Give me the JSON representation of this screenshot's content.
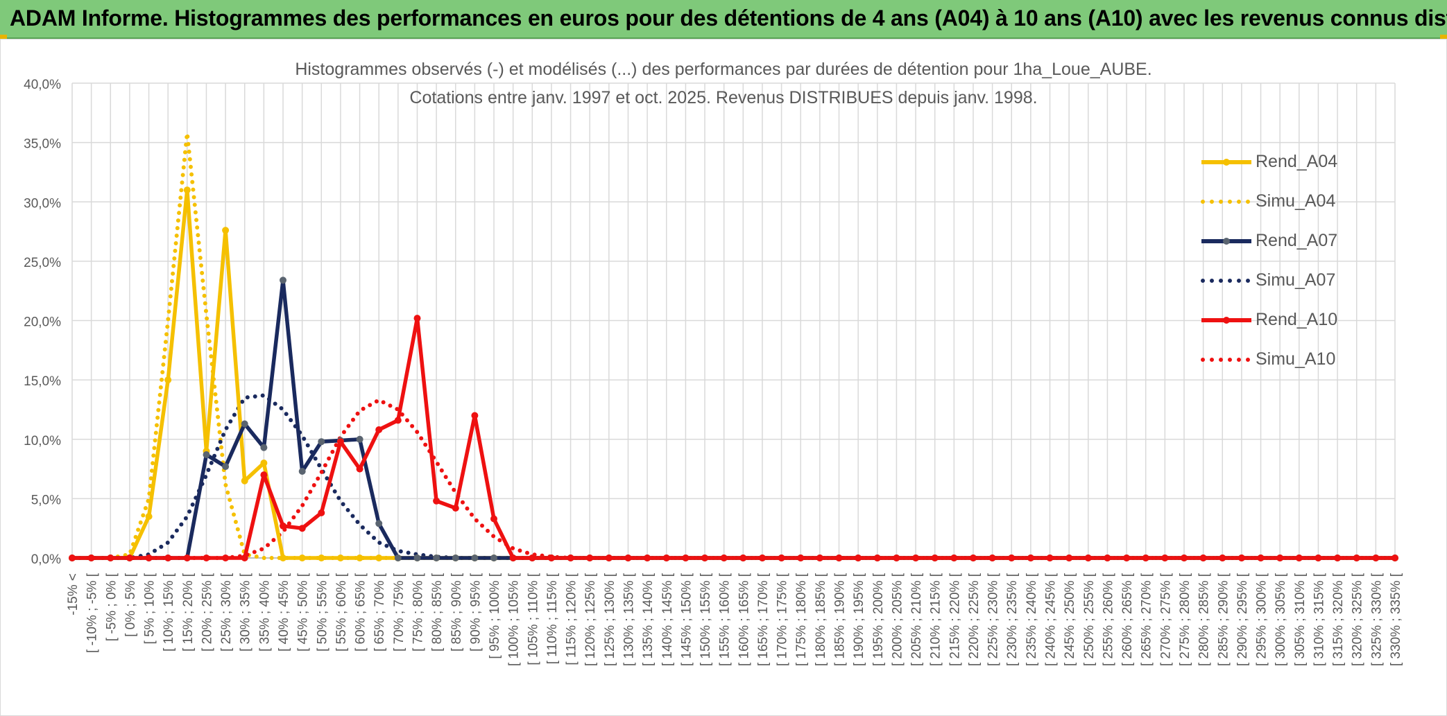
{
  "banner": {
    "title": "ADAM Informe. Histogrammes des performances en euros pour des détentions de 4 ans (A04) à 10 ans (A10) avec les revenus connus distribués"
  },
  "chart_data": {
    "type": "line",
    "title_line1": "Histogrammes observés (-) et modélisés (...) des performances par durées de détention pour 1ha_Loue_AUBE.",
    "title_line2": "Cotations entre janv. 1997 et oct. 2025.  Revenus DISTRIBUES depuis janv. 1998.",
    "ylim": [
      0,
      40
    ],
    "yticks": [
      "0,0%",
      "5,0%",
      "10,0%",
      "15,0%",
      "20,0%",
      "25,0%",
      "30,0%",
      "35,0%",
      "40,0%"
    ],
    "categories": [
      "-15% <",
      "[ -10% ; -5% [",
      "[ -5% ; 0% [",
      "[ 0% ; 5% [",
      "[ 5% ; 10% [",
      "[ 10% ; 15% [",
      "[ 15% ; 20% [",
      "[ 20% ; 25% [",
      "[ 25% ; 30% [",
      "[ 30% ; 35% [",
      "[ 35% ; 40% [",
      "[ 40% ; 45% [",
      "[ 45% ; 50% [",
      "[ 50% ; 55% [",
      "[ 55% ; 60% [",
      "[ 60% ; 65% [",
      "[ 65% ; 70% [",
      "[ 70% ; 75% [",
      "[ 75% ; 80% [",
      "[ 80% ; 85% [",
      "[ 85% ; 90% [",
      "[ 90% ; 95% [",
      "[ 95% ; 100% [",
      "[ 100% ; 105% [",
      "[ 105% ; 110% [",
      "[ 110% ; 115% [",
      "[ 115% ; 120% [",
      "[ 120% ; 125% [",
      "[ 125% ; 130% [",
      "[ 130% ; 135% [",
      "[ 135% ; 140% [",
      "[ 140% ; 145% [",
      "[ 145% ; 150% [",
      "[ 150% ; 155% [",
      "[ 155% ; 160% [",
      "[ 160% ; 165% [",
      "[ 165% ; 170% [",
      "[ 170% ; 175% [",
      "[ 175% ; 180% [",
      "[ 180% ; 185% [",
      "[ 185% ; 190% [",
      "[ 190% ; 195% [",
      "[ 195% ; 200% [",
      "[ 200% ; 205% [",
      "[ 205% ; 210% [",
      "[ 210% ; 215% [",
      "[ 215% ; 220% [",
      "[ 220% ; 225% [",
      "[ 225% ; 230% [",
      "[ 230% ; 235% [",
      "[ 235% ; 240% [",
      "[ 240% ; 245% [",
      "[ 245% ; 250% [",
      "[ 250% ; 255% [",
      "[ 255% ; 260% [",
      "[ 260% ; 265% [",
      "[ 265% ; 270% [",
      "[ 270% ; 275% [",
      "[ 275% ; 280% [",
      "[ 280% ; 285% [",
      "[ 285% ; 290% [",
      "[ 290% ; 295% [",
      "[ 295% ; 300% [",
      "[ 300% ; 305% [",
      "[ 305% ; 310% [",
      "[ 310% ; 315% [",
      "[ 315% ; 320% [",
      "[ 320% ; 325% [",
      "[ 325% ; 330% [",
      "[ 330% ; 335% ["
    ],
    "series": [
      {
        "name": "Rend_A04",
        "style": "solid",
        "color": "#f5c000",
        "values": [
          0,
          0,
          0,
          0,
          3.5,
          15,
          31,
          9,
          27.6,
          6.5,
          8,
          0,
          0,
          0,
          0,
          0,
          0,
          0,
          0,
          0,
          0,
          0,
          0,
          0,
          0,
          0,
          0,
          0,
          0,
          0,
          0,
          0,
          0,
          0,
          0,
          0,
          0,
          0,
          0,
          0,
          0,
          0,
          0,
          0,
          0,
          0,
          0,
          0,
          0,
          0,
          0,
          0,
          0,
          0,
          0,
          0,
          0,
          0,
          0,
          0,
          0,
          0,
          0,
          0,
          0,
          0,
          0,
          0,
          0,
          0
        ]
      },
      {
        "name": "Simu_A04",
        "style": "dotted",
        "color": "#f5c000",
        "values": [
          0,
          0,
          0,
          0.3,
          5,
          20,
          35.8,
          20.5,
          6.2,
          0.3,
          0,
          0,
          0,
          0,
          0,
          0,
          0,
          0,
          0,
          0,
          0,
          0,
          0,
          0,
          0,
          0,
          0,
          0,
          0,
          0,
          0,
          0,
          0,
          0,
          0,
          0,
          0,
          0,
          0,
          0,
          0,
          0,
          0,
          0,
          0,
          0,
          0,
          0,
          0,
          0,
          0,
          0,
          0,
          0,
          0,
          0,
          0,
          0,
          0,
          0,
          0,
          0,
          0,
          0,
          0,
          0,
          0,
          0,
          0,
          0
        ]
      },
      {
        "name": "Rend_A07",
        "style": "solid",
        "color": "#1a2a5e",
        "values": [
          0,
          0,
          0,
          0,
          0,
          0,
          0,
          8.7,
          7.7,
          11.3,
          9.3,
          23.4,
          7.3,
          9.8,
          9.9,
          10,
          2.9,
          0,
          0,
          0,
          0,
          0,
          0,
          0,
          0,
          0,
          0,
          0,
          0,
          0,
          0,
          0,
          0,
          0,
          0,
          0,
          0,
          0,
          0,
          0,
          0,
          0,
          0,
          0,
          0,
          0,
          0,
          0,
          0,
          0,
          0,
          0,
          0,
          0,
          0,
          0,
          0,
          0,
          0,
          0,
          0,
          0,
          0,
          0,
          0,
          0,
          0,
          0,
          0,
          0
        ]
      },
      {
        "name": "Simu_A07",
        "style": "dotted",
        "color": "#1a2a5e",
        "values": [
          0,
          0,
          0,
          0,
          0.3,
          1.3,
          3.5,
          7,
          10.8,
          13.5,
          13.7,
          12.5,
          10.3,
          7.5,
          4.8,
          2.8,
          1.3,
          0.6,
          0.3,
          0.1,
          0,
          0,
          0,
          0,
          0,
          0,
          0,
          0,
          0,
          0,
          0,
          0,
          0,
          0,
          0,
          0,
          0,
          0,
          0,
          0,
          0,
          0,
          0,
          0,
          0,
          0,
          0,
          0,
          0,
          0,
          0,
          0,
          0,
          0,
          0,
          0,
          0,
          0,
          0,
          0,
          0,
          0,
          0,
          0,
          0,
          0,
          0,
          0,
          0,
          0
        ]
      },
      {
        "name": "Rend_A10",
        "style": "solid",
        "color": "#ee1111",
        "values": [
          0,
          0,
          0,
          0,
          0,
          0,
          0,
          0,
          0,
          0,
          7,
          2.7,
          2.5,
          3.8,
          9.8,
          7.5,
          10.8,
          11.6,
          20.2,
          4.8,
          4.2,
          12,
          3.3,
          0,
          0,
          0,
          0,
          0,
          0,
          0,
          0,
          0,
          0,
          0,
          0,
          0,
          0,
          0,
          0,
          0,
          0,
          0,
          0,
          0,
          0,
          0,
          0,
          0,
          0,
          0,
          0,
          0,
          0,
          0,
          0,
          0,
          0,
          0,
          0,
          0,
          0,
          0,
          0,
          0,
          0,
          0,
          0,
          0,
          0,
          0
        ]
      },
      {
        "name": "Simu_A10",
        "style": "dotted",
        "color": "#ee1111",
        "values": [
          0,
          0,
          0,
          0,
          0,
          0,
          0,
          0,
          0,
          0.2,
          0.8,
          2.2,
          4.4,
          7.2,
          10.2,
          12.4,
          13.3,
          12.5,
          10.6,
          8.1,
          5.5,
          3.3,
          1.8,
          0.8,
          0.3,
          0.1,
          0,
          0,
          0,
          0,
          0,
          0,
          0,
          0,
          0,
          0,
          0,
          0,
          0,
          0,
          0,
          0,
          0,
          0,
          0,
          0,
          0,
          0,
          0,
          0,
          0,
          0,
          0,
          0,
          0,
          0,
          0,
          0,
          0,
          0,
          0,
          0,
          0,
          0,
          0,
          0,
          0,
          0,
          0,
          0
        ]
      }
    ],
    "legend": [
      "Rend_A04",
      "Simu_A04",
      "Rend_A07",
      "Simu_A07",
      "Rend_A10",
      "Simu_A10"
    ],
    "legend_position": "right"
  }
}
